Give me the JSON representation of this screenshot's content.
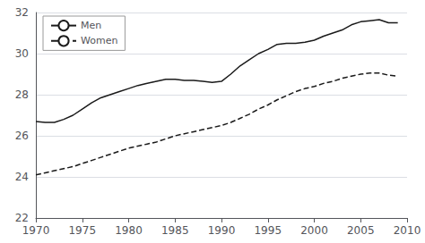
{
  "chart_data": {
    "type": "line",
    "x": [
      1970,
      1971,
      1972,
      1973,
      1974,
      1975,
      1976,
      1977,
      1978,
      1979,
      1980,
      1981,
      1982,
      1983,
      1984,
      1985,
      1986,
      1987,
      1988,
      1989,
      1990,
      1991,
      1992,
      1993,
      1994,
      1995,
      1996,
      1997,
      1998,
      1999,
      2000,
      2001,
      2002,
      2003,
      2004,
      2005,
      2006,
      2007,
      2008,
      2009
    ],
    "series": [
      {
        "name": "Men",
        "color": "#1a1a1a",
        "line_style": "solid",
        "values": [
          26.7,
          26.65,
          26.65,
          26.8,
          27.0,
          27.3,
          27.6,
          27.85,
          28.0,
          28.15,
          28.3,
          28.45,
          28.55,
          28.65,
          28.75,
          28.75,
          28.7,
          28.7,
          28.65,
          28.6,
          28.65,
          29.0,
          29.4,
          29.7,
          30.0,
          30.2,
          30.45,
          30.5,
          30.5,
          30.55,
          30.65,
          30.85,
          31.0,
          31.15,
          31.4,
          31.55,
          31.6,
          31.65,
          31.5,
          31.5
        ]
      },
      {
        "name": "Women",
        "color": "#1a1a1a",
        "line_style": "dashed",
        "values": [
          24.1,
          24.2,
          24.3,
          24.4,
          24.5,
          24.65,
          24.8,
          24.95,
          25.1,
          25.25,
          25.4,
          25.5,
          25.6,
          25.7,
          25.85,
          26.0,
          26.1,
          26.2,
          26.3,
          26.4,
          26.5,
          26.65,
          26.85,
          27.05,
          27.3,
          27.5,
          27.75,
          27.95,
          28.15,
          28.3,
          28.4,
          28.55,
          28.65,
          28.8,
          28.9,
          29.0,
          29.05,
          29.05,
          28.95,
          28.9
        ]
      }
    ],
    "xlim": [
      1970,
      2010
    ],
    "xticks": [
      1970,
      1975,
      1980,
      1985,
      1990,
      1995,
      2000,
      2005,
      2010
    ],
    "ylim": [
      22,
      32
    ],
    "yticks": [
      22,
      24,
      26,
      28,
      30,
      32
    ],
    "grid": true,
    "legend": "upper left"
  }
}
